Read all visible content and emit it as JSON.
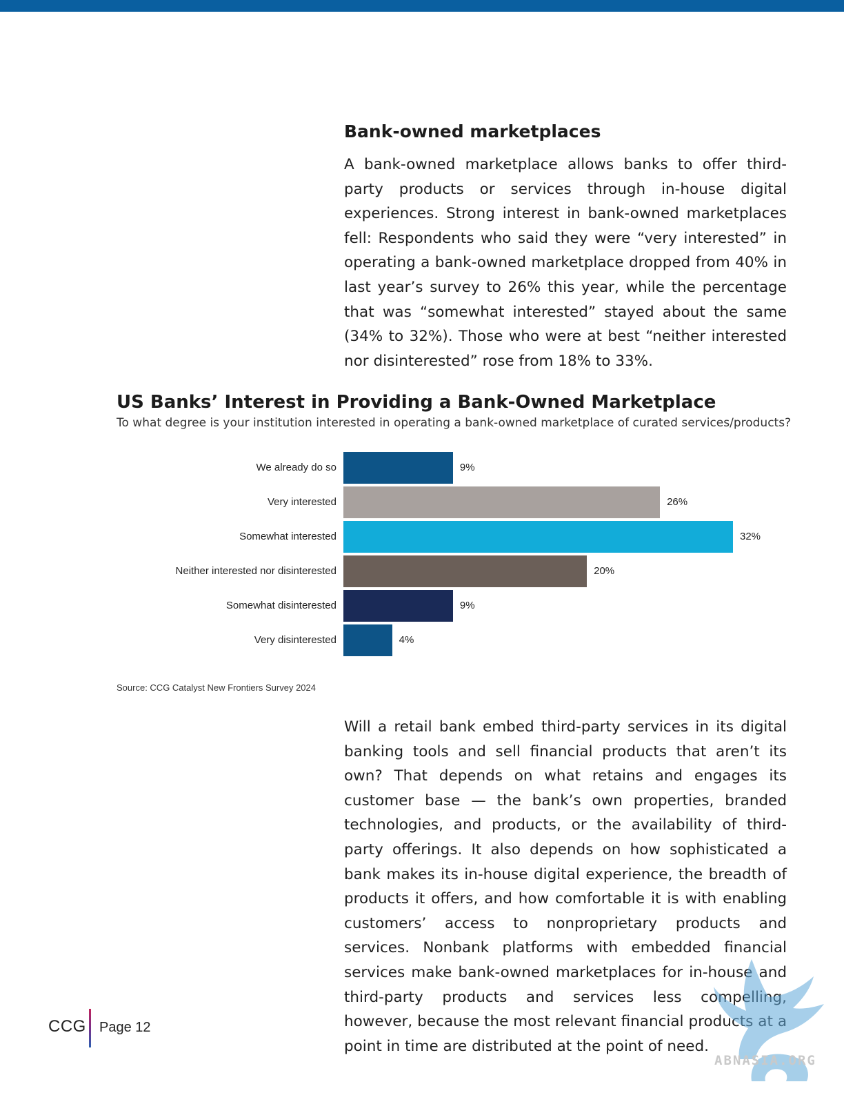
{
  "section": {
    "heading": "Bank-owned marketplaces",
    "paragraph_1": "A bank-owned marketplace allows banks to offer third-party products or services through in-house digital experiences. Strong interest in bank-owned marketplaces fell: Respondents who said they were “very interested” in operating a bank-owned marketplace dropped from 40% in last year’s survey to 26% this year, while the percentage that was “somewhat interested” stayed about the same (34% to 32%). Those who were at best “neither interested nor disinterested” rose from 18% to 33%.",
    "paragraph_2": "Will a retail bank embed third-party services in its digital banking tools and sell financial products that aren’t its own? That depends on what retains and engages its customer base — the bank’s own properties, branded technologies, and products, or the availability of third-party offerings. It also depends on how sophisticated a bank makes its in-house digital experience, the breadth of products it offers, and how comfortable it is with enabling customers’ access to nonproprietary products and services. Nonbank platforms with embedded financial services make bank-owned marketplaces for in-house and third-party products and services less compelling, however, because the most relevant financial products at a point in time are distributed at the point of need."
  },
  "chart_data": {
    "type": "bar",
    "orientation": "horizontal",
    "title": "US Banks’ Interest in Providing a Bank-Owned Marketplace",
    "subtitle": "To what degree is your institution interested in operating a bank-owned marketplace of curated services/products?",
    "categories": [
      "We already do so",
      "Very interested",
      "Somewhat interested",
      "Neither interested nor disinterested",
      "Somewhat disinterested",
      "Very disinterested"
    ],
    "values": [
      9,
      26,
      32,
      20,
      9,
      4
    ],
    "value_labels": [
      "9%",
      "26%",
      "32%",
      "20%",
      "9%",
      "4%"
    ],
    "colors": [
      "#0d5487",
      "#a8a19e",
      "#12acd9",
      "#6b5f58",
      "#1a2a57",
      "#0d5487"
    ],
    "xlim": [
      0,
      32
    ],
    "grid": false,
    "source": "Source: CCG Catalyst New Frontiers Survey 2024"
  },
  "footer": {
    "logo": "CCG",
    "page": "Page 12"
  },
  "watermark": {
    "text": "ABNASIA.ORG"
  },
  "colors": {
    "top_bar": "#0a5fa0"
  }
}
